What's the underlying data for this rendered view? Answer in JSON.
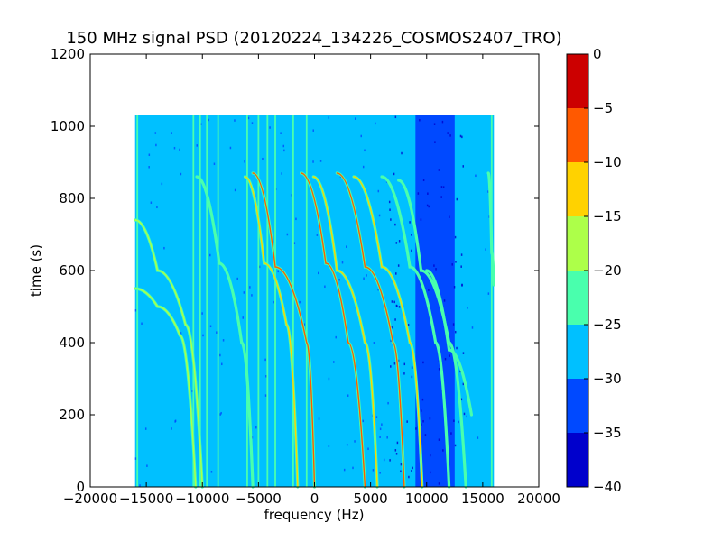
{
  "chart_data": {
    "type": "heatmap",
    "title": "150 MHz signal PSD (20120224_134226_COSMOS2407_TRO)",
    "xlabel": "frequency (Hz)",
    "ylabel": "time (s)",
    "xlim": [
      -20000,
      20000
    ],
    "ylim": [
      0,
      1200
    ],
    "x_ticks": [
      -20000,
      -15000,
      -10000,
      -5000,
      0,
      5000,
      10000,
      15000,
      20000
    ],
    "x_tick_labels": [
      "−20000",
      "−15000",
      "−10000",
      "−5000",
      "0",
      "5000",
      "10000",
      "15000",
      "20000"
    ],
    "y_ticks": [
      0,
      200,
      400,
      600,
      800,
      1000,
      1200
    ],
    "y_tick_labels": [
      "0",
      "200",
      "400",
      "600",
      "800",
      "1000",
      "1200"
    ],
    "data_extent": {
      "x": [
        -16000,
        16000
      ],
      "y": [
        0,
        1030
      ]
    },
    "background_level_db": -27,
    "colormap": "jet",
    "colorbar": {
      "levels": [
        -40,
        -35,
        -30,
        -25,
        -20,
        -15,
        -10,
        -5,
        0
      ],
      "tick_labels": [
        "−40",
        "−35",
        "−30",
        "−25",
        "−20",
        "−15",
        "−10",
        "−5",
        "0"
      ],
      "colors": [
        "#0000cc",
        "#0049ff",
        "#00c0ff",
        "#49ffad",
        "#adff49",
        "#ffd200",
        "#ff5900",
        "#cc0000"
      ]
    },
    "low_power_band_hz": [
      9000,
      12500
    ],
    "vertical_lines_hz": [
      -15800,
      -10800,
      -10200,
      -9600,
      -8600,
      -6000,
      -5000,
      -4200,
      -3500,
      -1900,
      -700,
      15800
    ],
    "doppler_tracks": [
      {
        "x": [
          -16000,
          -14000,
          -12000,
          -10600
        ],
        "y": [
          550,
          500,
          420,
          0
        ],
        "level_db": -20
      },
      {
        "x": [
          -16000,
          -14000,
          -11500,
          -10000
        ],
        "y": [
          740,
          600,
          450,
          0
        ],
        "level_db": -20
      },
      {
        "x": [
          -10500,
          -8500,
          -6500,
          -5500
        ],
        "y": [
          860,
          620,
          400,
          0
        ],
        "level_db": -22
      },
      {
        "x": [
          -6200,
          -4500,
          -2500,
          -1500
        ],
        "y": [
          860,
          620,
          450,
          0
        ],
        "level_db": -15
      },
      {
        "x": [
          -5500,
          -3500,
          -700,
          0
        ],
        "y": [
          870,
          610,
          400,
          0
        ],
        "level_db": -10
      },
      {
        "x": [
          -1200,
          1000,
          3000,
          4500
        ],
        "y": [
          870,
          620,
          400,
          0
        ],
        "level_db": -10
      },
      {
        "x": [
          -100,
          2000,
          4500,
          5600
        ],
        "y": [
          860,
          600,
          400,
          0
        ],
        "level_db": -15
      },
      {
        "x": [
          2000,
          4500,
          7000,
          8000
        ],
        "y": [
          870,
          610,
          400,
          0
        ],
        "level_db": -10
      },
      {
        "x": [
          3500,
          6000,
          8500,
          9600
        ],
        "y": [
          860,
          610,
          400,
          0
        ],
        "level_db": -15
      },
      {
        "x": [
          6000,
          8500,
          10800,
          12000
        ],
        "y": [
          860,
          610,
          400,
          0
        ],
        "level_db": -22
      },
      {
        "x": [
          7500,
          9500,
          12000,
          13500
        ],
        "y": [
          850,
          600,
          400,
          0
        ],
        "level_db": -22
      },
      {
        "x": [
          10000,
          12000,
          14000
        ],
        "y": [
          600,
          380,
          200
        ],
        "level_db": -25
      },
      {
        "x": [
          15500,
          15800,
          16000
        ],
        "y": [
          870,
          650,
          560
        ],
        "level_db": -22
      }
    ]
  }
}
